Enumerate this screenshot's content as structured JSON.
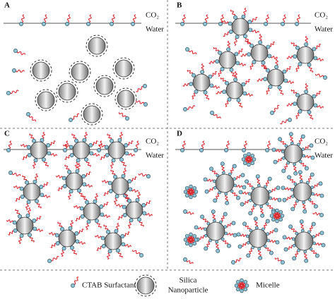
{
  "panels": [
    {
      "label": "A",
      "gas": "CO₂",
      "liquid": "Water"
    },
    {
      "label": "B",
      "gas": "CO₂",
      "liquid": "Water"
    },
    {
      "label": "C",
      "gas": "CO₂",
      "liquid": "Water"
    },
    {
      "label": "D",
      "gas": "CO₂",
      "liquid": "Water"
    }
  ],
  "legend": {
    "surfactant": "CTAB Surfactant",
    "nanoparticle": [
      "Silica",
      "Nanoparticle"
    ],
    "micelle": "Micelle"
  }
}
